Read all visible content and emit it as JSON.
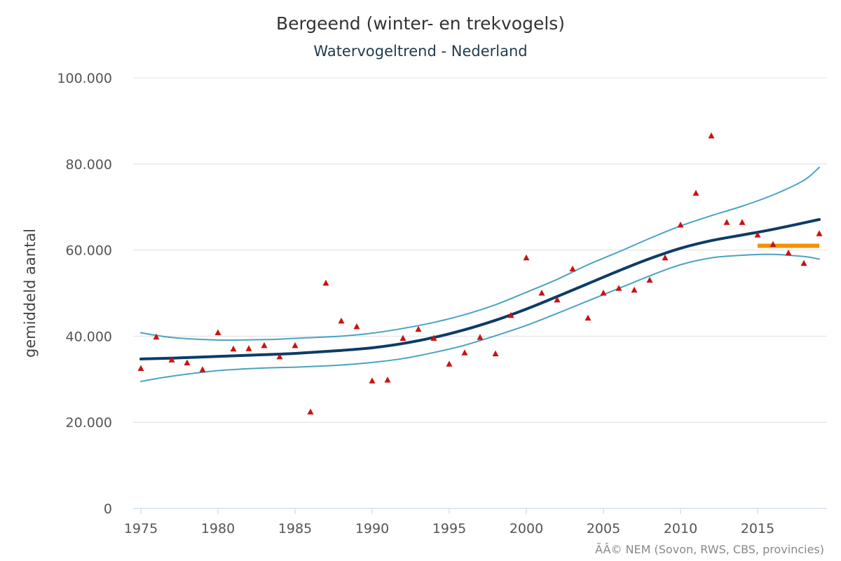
{
  "chart_data": {
    "type": "line",
    "title": "Bergeend (winter- en trekvogels)",
    "subtitle": "Watervogeltrend - Nederland",
    "ylabel": "gemiddeld aantal",
    "xlabel": "",
    "credit": "ÃÂ© NEM (Sovon, RWS, CBS, provincies)",
    "xlim": [
      1975,
      2019
    ],
    "ylim": [
      0,
      100000
    ],
    "x_ticks": [
      1975,
      1980,
      1985,
      1990,
      1995,
      2000,
      2005,
      2010,
      2015
    ],
    "x_tick_labels": [
      "1975",
      "1980",
      "1985",
      "1990",
      "1995",
      "2000",
      "2005",
      "2010",
      "2015"
    ],
    "y_ticks": [
      0,
      20000,
      40000,
      60000,
      80000,
      100000
    ],
    "y_tick_labels": [
      "0",
      "20.000",
      "40.000",
      "60.000",
      "80.000",
      "100.000"
    ],
    "grid": true,
    "colors": {
      "trend": "#0d3c66",
      "confidence": "#4aa3c2",
      "points": "#cc1111",
      "recent_mean": "#f39200"
    },
    "series": [
      {
        "kind": "trend",
        "x": [
          1975,
          1977,
          1980,
          1983,
          1985,
          1988,
          1990,
          1992,
          1994,
          1996,
          1998,
          2000,
          2002,
          2004,
          2006,
          2008,
          2010,
          2012,
          2014,
          2016,
          2019
        ],
        "values": [
          34700,
          34900,
          35300,
          35700,
          36000,
          36700,
          37300,
          38300,
          39700,
          41500,
          43700,
          46300,
          49200,
          52200,
          55200,
          58000,
          60400,
          62200,
          63500,
          64800,
          67100
        ]
      },
      {
        "kind": "upper",
        "x": [
          1975,
          1977,
          1980,
          1983,
          1985,
          1988,
          1990,
          1992,
          1994,
          1996,
          1998,
          2000,
          2002,
          2004,
          2006,
          2008,
          2010,
          2012,
          2014,
          2016,
          2018,
          2019
        ],
        "values": [
          40800,
          39700,
          39100,
          39200,
          39500,
          40000,
          40700,
          41800,
          43200,
          45000,
          47300,
          50200,
          53200,
          56600,
          59600,
          62700,
          65600,
          68000,
          70200,
          72800,
          76200,
          79200
        ]
      },
      {
        "kind": "lower",
        "x": [
          1975,
          1977,
          1980,
          1983,
          1985,
          1988,
          1990,
          1992,
          1994,
          1996,
          1998,
          2000,
          2002,
          2004,
          2006,
          2008,
          2010,
          2012,
          2014,
          2016,
          2018,
          2019
        ],
        "values": [
          29500,
          30700,
          32000,
          32600,
          32800,
          33300,
          33900,
          34800,
          36200,
          37900,
          40100,
          42500,
          45300,
          48200,
          51100,
          54000,
          56600,
          58200,
          58800,
          59000,
          58500,
          57900
        ]
      },
      {
        "kind": "points",
        "x": [
          1975,
          1976,
          1977,
          1978,
          1979,
          1980,
          1981,
          1982,
          1983,
          1984,
          1985,
          1986,
          1987,
          1988,
          1989,
          1990,
          1991,
          1992,
          1993,
          1994,
          1995,
          1996,
          1997,
          1998,
          1999,
          2000,
          2001,
          2002,
          2003,
          2004,
          2005,
          2006,
          2007,
          2008,
          2009,
          2010,
          2011,
          2012,
          2013,
          2014,
          2015,
          2016,
          2017,
          2018,
          2019
        ],
        "values": [
          32500,
          39800,
          34500,
          33800,
          32200,
          40800,
          37000,
          37100,
          37800,
          35200,
          37800,
          22400,
          52300,
          43500,
          42200,
          29600,
          29800,
          39500,
          41600,
          39500,
          33500,
          36100,
          39700,
          35900,
          44800,
          58200,
          50000,
          48400,
          55600,
          44200,
          50000,
          51100,
          50700,
          53000,
          58200,
          65800,
          73200,
          86500,
          66400,
          66400,
          63500,
          61300,
          59300,
          56900,
          63800
        ]
      },
      {
        "kind": "recent_mean",
        "x": [
          2015,
          2019
        ],
        "values": [
          61000,
          61000
        ]
      }
    ]
  }
}
